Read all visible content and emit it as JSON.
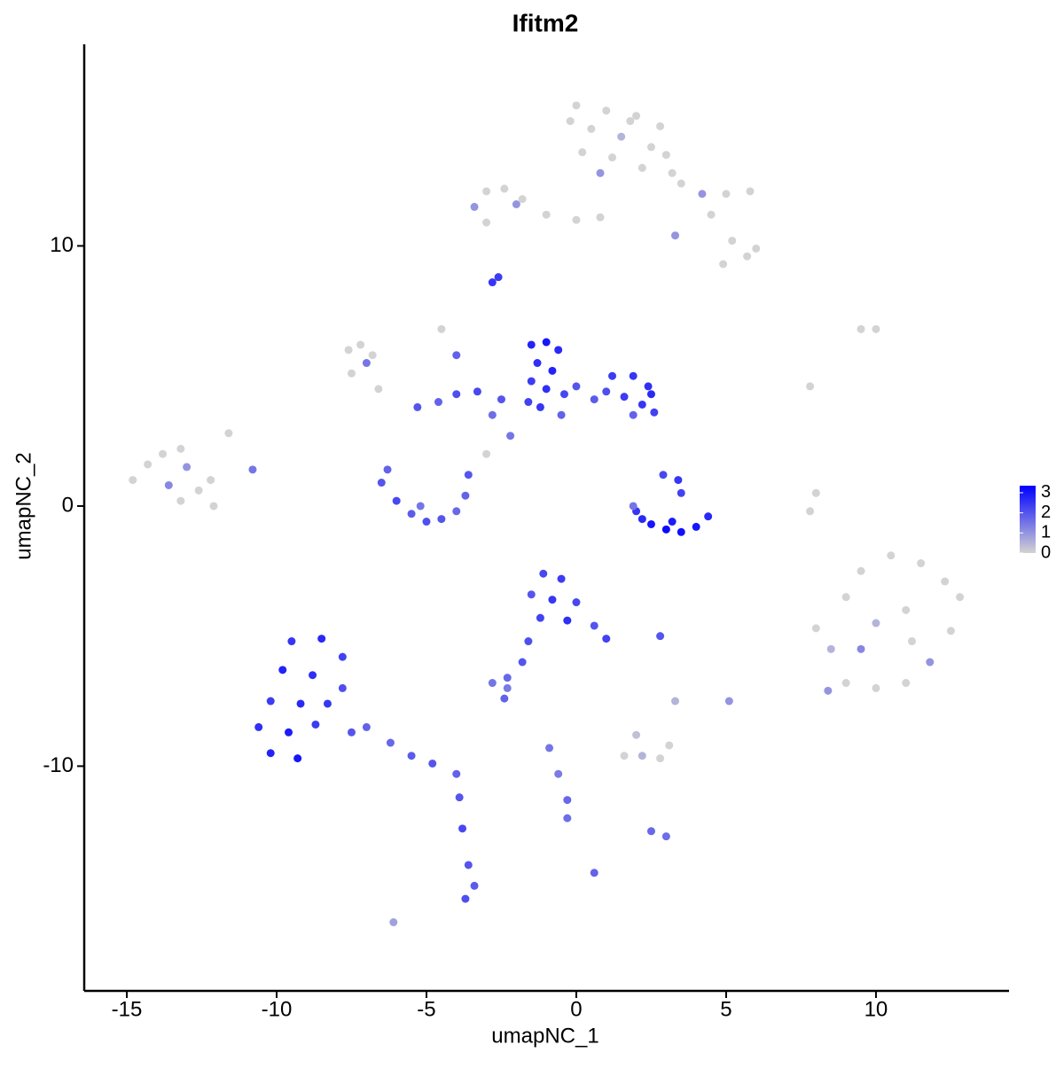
{
  "chart_data": {
    "type": "scatter",
    "title": "Ifitm2",
    "x_label": "umapNC_1",
    "y_label": "umapNC_2",
    "x": [
      0,
      1,
      2,
      2.8,
      0.5,
      1.5,
      2.5,
      0.2,
      1.2,
      2.2,
      3,
      0.8,
      1.8,
      3.2,
      -0.2,
      3.5,
      4.2,
      5,
      5.8,
      4.5,
      5.2,
      5.7,
      6,
      4.9,
      3.3,
      -3.4,
      -3,
      -2.4,
      -1.8,
      -3,
      -1,
      0,
      0.8,
      -2,
      -2.8,
      -2.6,
      -7.6,
      -7.2,
      -6.8,
      -7.5,
      -6.6,
      -7,
      -14.8,
      -14.3,
      -13.8,
      -13.2,
      -13,
      -13.6,
      -12.6,
      -12.2,
      -13.2,
      -12.1,
      -11.6,
      -10.8,
      -1.5,
      -1,
      -0.6,
      -1.3,
      -0.8,
      -1.5,
      -1,
      -0.4,
      -1.2,
      -0.5,
      -1.6,
      0,
      1.2,
      1.9,
      2.4,
      1,
      1.6,
      2.2,
      2.6,
      1.9,
      0.6,
      2.5,
      -6.5,
      -6,
      -5.5,
      -5,
      -4.5,
      -4,
      -3.7,
      -3.6,
      -6.3,
      -5.2,
      2,
      2.5,
      3,
      3.5,
      4,
      4.4,
      3.2,
      2.2,
      1.9,
      2.9,
      3.4,
      3.5,
      8,
      8.5,
      9,
      9.5,
      10.5,
      11.5,
      12.3,
      12.8,
      12.5,
      11.8,
      11,
      10,
      9,
      8.4,
      10,
      11,
      9.5,
      11.2,
      -1.1,
      -0.5,
      -1.5,
      -0.8,
      0,
      -1.2,
      -0.3,
      0.6,
      1,
      -1.6,
      -1.8,
      -2.3,
      -2.8,
      -2.3,
      -2.4,
      -9.5,
      -8.5,
      -7.8,
      -9.8,
      -8.8,
      -7.8,
      -10.2,
      -9.2,
      -8.3,
      -10.6,
      -9.6,
      -8.7,
      -10.2,
      -9.3,
      -7.5,
      -7,
      -6.2,
      -5.5,
      -4.8,
      -4,
      -3.9,
      -3.8,
      -3.6,
      -3.4,
      -3.7,
      1.6,
      2.2,
      2.8,
      3.1,
      2,
      -0.9,
      -0.6,
      -0.3,
      -0.3,
      -5.3,
      -4.6,
      -4,
      -3.3,
      -2.8,
      -2.2,
      -3,
      -4.5,
      -4,
      -2.5,
      9.5,
      10,
      7.8,
      8,
      7.8,
      0.6,
      -6.1,
      2.5,
      3,
      2.8,
      5.1,
      3.3
    ],
    "y": [
      15.4,
      15.2,
      15,
      14.6,
      14.5,
      14.2,
      13.8,
      13.6,
      13.4,
      13,
      13.5,
      12.8,
      14.8,
      12.8,
      14.8,
      12.4,
      12,
      12,
      12.1,
      11.2,
      10.2,
      9.6,
      9.9,
      9.3,
      10.4,
      11.5,
      12.1,
      12.2,
      11.8,
      10.9,
      11.2,
      11,
      11.1,
      11.6,
      8.6,
      8.8,
      6,
      6.2,
      5.8,
      5.1,
      4.5,
      5.5,
      1,
      1.6,
      2,
      2.2,
      1.5,
      0.8,
      0.6,
      1,
      0.2,
      0,
      2.8,
      1.4,
      6.2,
      6.3,
      6,
      5.5,
      5.2,
      4.8,
      4.5,
      4.3,
      3.8,
      3.5,
      4,
      4.6,
      5,
      5,
      4.6,
      4.4,
      4.2,
      3.9,
      3.6,
      3.5,
      4.1,
      4.3,
      0.9,
      0.2,
      -0.3,
      -0.6,
      -0.5,
      -0.2,
      0.4,
      1.2,
      1.4,
      0,
      -0.2,
      -0.7,
      -0.9,
      -1,
      -0.8,
      -0.4,
      -0.6,
      -0.5,
      0,
      1.2,
      1,
      0.5,
      -4.7,
      -5.5,
      -3.5,
      -2.5,
      -1.9,
      -2.2,
      -2.9,
      -3.5,
      -4.8,
      -6,
      -6.8,
      -7,
      -6.8,
      -7.1,
      -4.5,
      -4,
      -5.5,
      -5.2,
      -2.6,
      -2.8,
      -3.4,
      -3.6,
      -3.7,
      -4.3,
      -4.4,
      -4.6,
      -5.1,
      -5.2,
      -6,
      -6.6,
      -6.8,
      -7,
      -7.4,
      -5.2,
      -5.1,
      -5.8,
      -6.3,
      -6.5,
      -7,
      -7.5,
      -7.6,
      -7.6,
      -8.5,
      -8.7,
      -8.4,
      -9.5,
      -9.7,
      -8.7,
      -8.5,
      -9.1,
      -9.6,
      -9.9,
      -10.3,
      -11.2,
      -12.4,
      -13.8,
      -14.6,
      -15.1,
      -9.6,
      -9.6,
      -9.7,
      -9.2,
      -8.8,
      -9.3,
      -10.3,
      -11.3,
      -12,
      3.8,
      4,
      4.3,
      4.4,
      3.5,
      2.7,
      2,
      6.8,
      5.8,
      4.1,
      6.8,
      6.8,
      4.6,
      0.5,
      -0.2,
      -14.1,
      -16,
      -12.5,
      -12.7,
      -5,
      -7.5,
      -7.5
    ],
    "values": [
      0,
      0,
      0,
      0,
      0,
      0.5,
      0,
      0,
      0,
      0,
      0,
      1,
      0,
      0,
      0,
      0,
      1,
      0,
      0,
      0,
      0,
      0,
      0,
      0,
      1,
      1,
      0,
      0,
      0,
      0,
      0,
      0,
      0,
      1,
      2.5,
      2.4,
      0,
      0,
      0,
      0,
      0,
      1.5,
      0,
      0,
      0,
      0,
      1,
      1.2,
      0,
      0,
      0,
      0,
      0,
      1.5,
      2.8,
      3,
      2.7,
      2.6,
      2.8,
      2.4,
      2.6,
      2.2,
      2.5,
      1.8,
      2.3,
      2,
      2.4,
      2.5,
      2.6,
      2.1,
      2.4,
      2.5,
      2.3,
      1.8,
      1.9,
      2.7,
      2,
      2.2,
      1.9,
      2.1,
      2,
      1.7,
      1.8,
      2,
      1.8,
      1.5,
      2.5,
      3,
      3.2,
      3.1,
      3,
      2.7,
      2.9,
      2.7,
      1.5,
      2.2,
      2.5,
      2.3,
      0,
      0.5,
      0,
      0,
      0,
      0,
      0,
      0,
      0,
      1,
      0,
      0,
      0,
      1,
      0.5,
      0,
      1.2,
      0,
      2.2,
      2.4,
      2,
      2.5,
      2.2,
      2.3,
      2.6,
      2,
      2.3,
      2.1,
      2,
      1.7,
      1.5,
      1.4,
      1.8,
      2.5,
      2.7,
      2.3,
      2.8,
      2.6,
      2.1,
      2.4,
      2.7,
      2.5,
      2.6,
      2.9,
      2.4,
      2.8,
      3,
      2,
      1.8,
      1.7,
      1.9,
      2,
      1.8,
      2,
      2.2,
      2,
      1.9,
      2.1,
      0,
      0.5,
      0,
      0,
      0.3,
      1.5,
      1.4,
      1.7,
      1.6,
      2,
      1.8,
      2.1,
      2.2,
      1.6,
      1.5,
      0,
      0,
      1.8,
      2,
      0,
      0,
      0,
      0,
      0,
      1.8,
      0.8,
      1.7,
      1.6,
      2,
      1,
      0.5
    ],
    "color_scale": {
      "low": "#d3d3d3",
      "high": "#0000ff",
      "lim": [
        0,
        3.35
      ],
      "ticks": [
        0,
        1,
        2,
        3
      ]
    },
    "xlim": [
      -16.42,
      14.44
    ],
    "ylim": [
      -18.64,
      17.75
    ],
    "xticks": [
      -15,
      -10,
      -5,
      0,
      5,
      10
    ],
    "yticks": [
      -10,
      0,
      10
    ]
  }
}
